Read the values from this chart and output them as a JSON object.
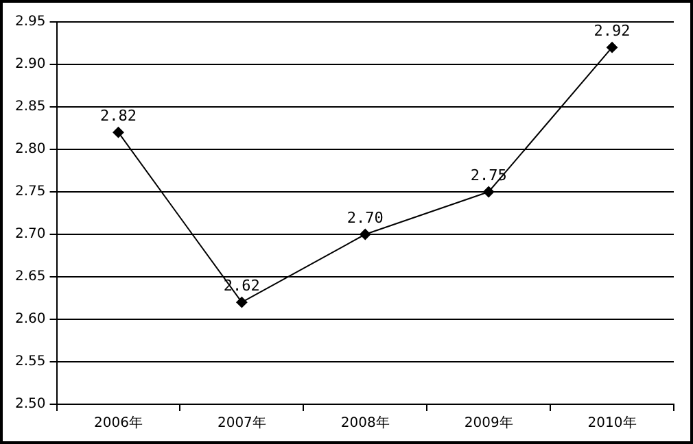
{
  "chart_data": {
    "type": "line",
    "categories": [
      "2006年",
      "2007年",
      "2008年",
      "2009年",
      "2010年"
    ],
    "series": [
      {
        "color": "#000000",
        "values": [
          2.82,
          2.62,
          2.7,
          2.75,
          2.92
        ],
        "value_labels": [
          "2.82",
          "2.62",
          "2.70",
          "2.75",
          "2.92"
        ]
      }
    ],
    "ylim": [
      2.5,
      2.95
    ],
    "yticks": [
      {
        "value": 2.5,
        "label": "2.50"
      },
      {
        "value": 2.55,
        "label": "2.55"
      },
      {
        "value": 2.6,
        "label": "2.60"
      },
      {
        "value": 2.65,
        "label": "2.65"
      },
      {
        "value": 2.7,
        "label": "2.70"
      },
      {
        "value": 2.75,
        "label": "2.75"
      },
      {
        "value": 2.8,
        "label": "2.80"
      },
      {
        "value": 2.85,
        "label": "2.85"
      },
      {
        "value": 2.9,
        "label": "2.90"
      },
      {
        "value": 2.95,
        "label": "2.95"
      }
    ],
    "grid": "y",
    "marker": "diamond",
    "line_style": "solid"
  }
}
